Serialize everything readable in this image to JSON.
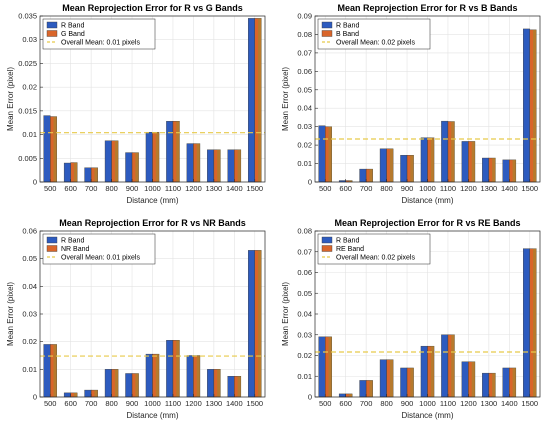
{
  "colors": {
    "r_band": "#2D5BBF",
    "second_band": "#D9652A",
    "second_band_alt": "#9A8D2F",
    "mean_line": "#E8C94A",
    "grid": "#e3e3e3"
  },
  "chart_data": [
    {
      "type": "bar",
      "title": "Mean Reprojection Error for R vs G Bands",
      "xlabel": "Distance (mm)",
      "ylabel": "Mean Error (pixel)",
      "ylim": [
        0,
        0.035
      ],
      "yticks": [
        0,
        0.005,
        0.01,
        0.015,
        0.02,
        0.025,
        0.03,
        0.035
      ],
      "grid": true,
      "legend_position": "top-left",
      "categories": [
        "500",
        "600",
        "700",
        "800",
        "900",
        "1000",
        "1100",
        "1200",
        "1300",
        "1400",
        "1500"
      ],
      "series": [
        {
          "name": "R Band",
          "values": [
            0.014,
            0.004,
            0.003,
            0.0087,
            0.0062,
            0.0105,
            0.0128,
            0.0081,
            0.0068,
            0.0068,
            0.0345
          ]
        },
        {
          "name": "G Band",
          "values": [
            0.0138,
            0.0041,
            0.003,
            0.0087,
            0.0062,
            0.0105,
            0.0128,
            0.0081,
            0.0068,
            0.0068,
            0.0345
          ]
        }
      ],
      "mean_line": {
        "label": "Overall Mean: 0.01 pixels",
        "value": 0.0104
      }
    },
    {
      "type": "bar",
      "title": "Mean Reprojection Error for R vs B Bands",
      "xlabel": "Distance (mm)",
      "ylabel": "Mean Error (pixel)",
      "ylim": [
        0,
        0.09
      ],
      "yticks": [
        0,
        0.01,
        0.02,
        0.03,
        0.04,
        0.05,
        0.06,
        0.07,
        0.08,
        0.09
      ],
      "grid": true,
      "legend_position": "top-left",
      "categories": [
        "500",
        "600",
        "700",
        "800",
        "900",
        "1000",
        "1100",
        "1200",
        "1300",
        "1400",
        "1500"
      ],
      "series": [
        {
          "name": "R Band",
          "values": [
            0.0305,
            0.0008,
            0.007,
            0.018,
            0.0145,
            0.024,
            0.033,
            0.022,
            0.013,
            0.012,
            0.083
          ]
        },
        {
          "name": "B Band",
          "values": [
            0.03,
            0.0008,
            0.007,
            0.018,
            0.0145,
            0.024,
            0.0328,
            0.022,
            0.013,
            0.012,
            0.0825
          ]
        }
      ],
      "mean_line": {
        "label": "Overall Mean: 0.02 pixels",
        "value": 0.0233
      }
    },
    {
      "type": "bar",
      "title": "Mean Reprojection Error for R vs NR Bands",
      "xlabel": "Distance (mm)",
      "ylabel": "Mean Error (pixel)",
      "ylim": [
        0,
        0.06
      ],
      "yticks": [
        0,
        0.01,
        0.02,
        0.03,
        0.04,
        0.05,
        0.06
      ],
      "grid": true,
      "legend_position": "top-left",
      "categories": [
        "500",
        "600",
        "700",
        "800",
        "900",
        "1000",
        "1100",
        "1200",
        "1300",
        "1400",
        "1500"
      ],
      "series": [
        {
          "name": "R Band",
          "values": [
            0.019,
            0.0015,
            0.0025,
            0.01,
            0.0085,
            0.0155,
            0.0205,
            0.015,
            0.01,
            0.0075,
            0.053
          ]
        },
        {
          "name": "NR Band",
          "values": [
            0.019,
            0.0015,
            0.0025,
            0.01,
            0.0085,
            0.0155,
            0.0205,
            0.015,
            0.01,
            0.0075,
            0.053
          ]
        }
      ],
      "mean_line": {
        "label": "Overall Mean: 0.01 pixels",
        "value": 0.0148
      }
    },
    {
      "type": "bar",
      "title": "Mean Reprojection Error for R vs RE Bands",
      "xlabel": "Distance (mm)",
      "ylabel": "Mean Error (pixel)",
      "ylim": [
        0,
        0.08
      ],
      "yticks": [
        0,
        0.01,
        0.02,
        0.03,
        0.04,
        0.05,
        0.06,
        0.07,
        0.08
      ],
      "grid": true,
      "legend_position": "top-left",
      "categories": [
        "500",
        "600",
        "700",
        "800",
        "900",
        "1000",
        "1100",
        "1200",
        "1300",
        "1400",
        "1500"
      ],
      "series": [
        {
          "name": "R Band",
          "values": [
            0.029,
            0.0015,
            0.008,
            0.018,
            0.014,
            0.0245,
            0.03,
            0.017,
            0.0115,
            0.014,
            0.0715
          ]
        },
        {
          "name": "RE Band",
          "values": [
            0.029,
            0.0015,
            0.008,
            0.018,
            0.014,
            0.0245,
            0.03,
            0.017,
            0.0115,
            0.014,
            0.0715
          ]
        }
      ],
      "mean_line": {
        "label": "Overall Mean: 0.02 pixels",
        "value": 0.0217
      }
    }
  ]
}
